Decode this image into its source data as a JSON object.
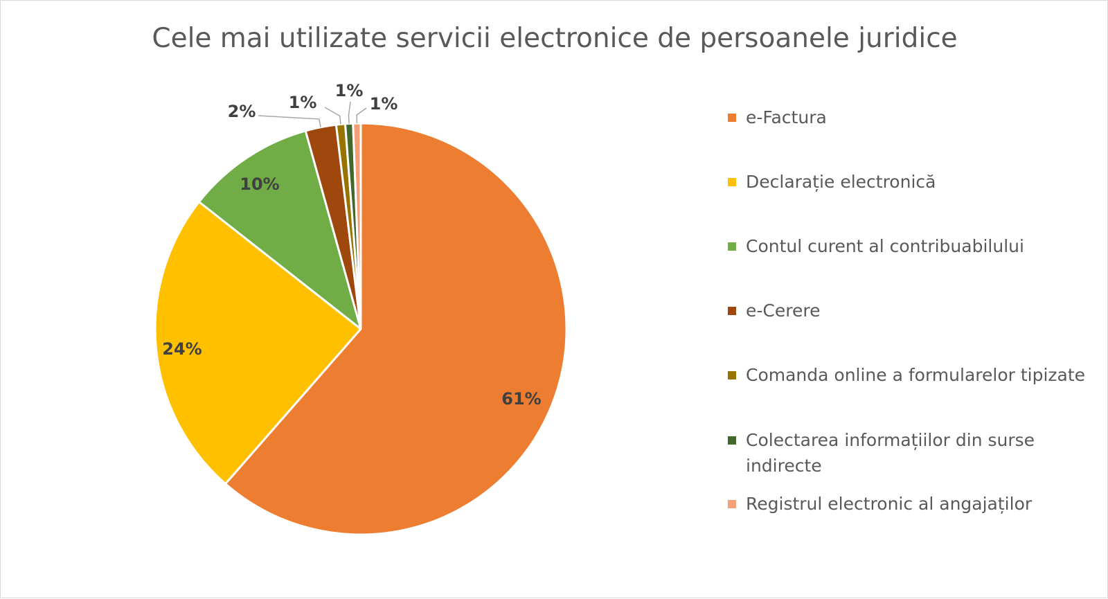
{
  "chart_data": {
    "type": "pie",
    "title": "Cele mai utilizate servicii electronice de persoanele juridice",
    "legend_position": "right",
    "slices": [
      {
        "label": "e-Factura",
        "value": 61,
        "display": "61%",
        "color": "#ed7d31"
      },
      {
        "label": "Declarație electronică",
        "value": 24,
        "display": "24%",
        "color": "#ffc000"
      },
      {
        "label": "Contul curent al contribuabilului",
        "value": 10,
        "display": "10%",
        "color": "#70ad47"
      },
      {
        "label": "e-Cerere",
        "value": 2.4,
        "display": "2%",
        "color": "#9e480e"
      },
      {
        "label": "Comanda online a formularelor tipizate",
        "value": 0.7,
        "display": "1%",
        "color": "#997300"
      },
      {
        "label": "Colectarea informațiilor din surse indirecte",
        "value": 0.6,
        "display": "1%",
        "color": "#43682b"
      },
      {
        "label": "Registrul electronic al angajaților",
        "value": 0.6,
        "display": "1%",
        "color": "#f4a076"
      }
    ]
  }
}
